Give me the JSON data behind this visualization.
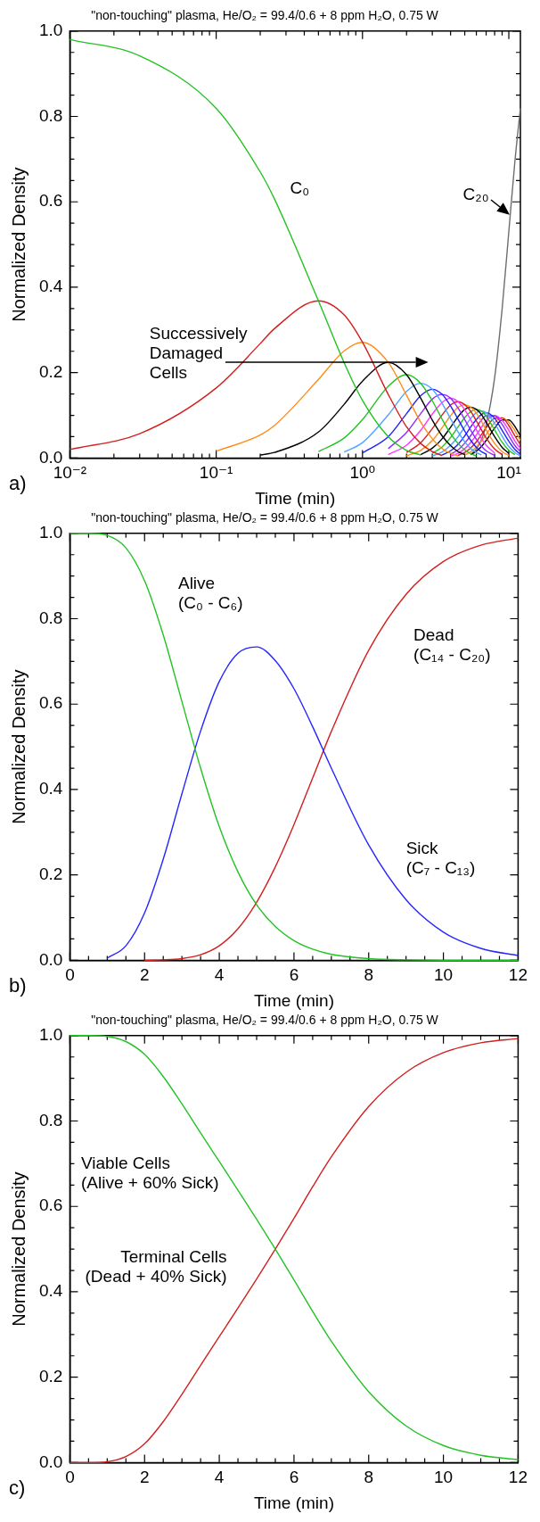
{
  "chart_data": [
    {
      "type": "line",
      "title": "\"non-touching\" plasma, He/O₂ = 99.4/0.6 + 8 ppm H₂O, 0.75 W",
      "xlabel": "Time (min)",
      "ylabel": "Normalized Density",
      "log": "x",
      "marker": "none",
      "xlim": [
        0.01,
        12
      ],
      "xticks": [
        {
          "value": 0.01,
          "label": "10⁻²"
        },
        {
          "value": 0.02,
          "label": null
        },
        {
          "value": 0.03,
          "label": null
        },
        {
          "value": 0.04,
          "label": null
        },
        {
          "value": 0.05,
          "label": null
        },
        {
          "value": 0.06,
          "label": null
        },
        {
          "value": 0.07,
          "label": null
        },
        {
          "value": 0.08,
          "label": null
        },
        {
          "value": 0.09,
          "label": null
        },
        {
          "value": 0.1,
          "label": "10⁻¹"
        },
        {
          "value": 0.2,
          "label": null
        },
        {
          "value": 0.3,
          "label": null
        },
        {
          "value": 0.4,
          "label": null
        },
        {
          "value": 0.5,
          "label": null
        },
        {
          "value": 0.6,
          "label": null
        },
        {
          "value": 0.7,
          "label": null
        },
        {
          "value": 0.8,
          "label": null
        },
        {
          "value": 0.9,
          "label": null
        },
        {
          "value": 1,
          "label": "10⁰"
        },
        {
          "value": 2,
          "label": null
        },
        {
          "value": 3,
          "label": null
        },
        {
          "value": 4,
          "label": null
        },
        {
          "value": 5,
          "label": null
        },
        {
          "value": 6,
          "label": null
        },
        {
          "value": 7,
          "label": null
        },
        {
          "value": 8,
          "label": null
        },
        {
          "value": 9,
          "label": null
        },
        {
          "value": 10,
          "label": "10¹"
        }
      ],
      "ylim": [
        0,
        1
      ],
      "yticks": [
        {
          "value": 0,
          "label": "0.0"
        },
        {
          "value": 0.05,
          "label": null
        },
        {
          "value": 0.1,
          "label": null
        },
        {
          "value": 0.15,
          "label": null
        },
        {
          "value": 0.2,
          "label": "0.2"
        },
        {
          "value": 0.25,
          "label": null
        },
        {
          "value": 0.3,
          "label": null
        },
        {
          "value": 0.35,
          "label": null
        },
        {
          "value": 0.4,
          "label": "0.4"
        },
        {
          "value": 0.45,
          "label": null
        },
        {
          "value": 0.5,
          "label": null
        },
        {
          "value": 0.55,
          "label": null
        },
        {
          "value": 0.6,
          "label": "0.6"
        },
        {
          "value": 0.65,
          "label": null
        },
        {
          "value": 0.7,
          "label": null
        },
        {
          "value": 0.75,
          "label": null
        },
        {
          "value": 0.8,
          "label": "0.8"
        },
        {
          "value": 0.85,
          "label": null
        },
        {
          "value": 0.9,
          "label": null
        },
        {
          "value": 0.95,
          "label": null
        },
        {
          "value": 1,
          "label": "1.0"
        }
      ],
      "x": [
        0.01,
        0.03,
        0.1,
        0.2,
        0.25,
        0.5,
        0.75,
        1,
        1.5,
        2,
        2.5,
        3,
        3.5,
        4,
        4.5,
        5,
        5.5,
        6,
        6.5,
        7,
        8,
        9,
        10,
        11,
        12
      ],
      "series": [
        {
          "name": "C₀",
          "color": "#22c322",
          "values": [
            0.98,
            0.942,
            0.819,
            0.67,
            0.607,
            0.368,
            0.223,
            0.135,
            0.05,
            0.018,
            0.007,
            null,
            null,
            null,
            null,
            null,
            null,
            null,
            null,
            null,
            null,
            null,
            null,
            null,
            null
          ]
        },
        {
          "color": "#d21f1f",
          "values": [
            0.02,
            0.057,
            0.164,
            0.268,
            0.303,
            0.368,
            0.335,
            0.271,
            0.149,
            0.073,
            0.034,
            0.015,
            0.006,
            null,
            null,
            null,
            null,
            null,
            null,
            null,
            null,
            null,
            null,
            null,
            null
          ]
        },
        {
          "color": "#ff8c1a",
          "values": [
            null,
            null,
            0.016,
            0.054,
            0.076,
            0.184,
            0.251,
            0.271,
            0.224,
            0.147,
            0.084,
            0.045,
            0.022,
            0.011,
            0.005,
            null,
            null,
            null,
            null,
            null,
            null,
            null,
            null,
            null,
            null
          ]
        },
        {
          "color": "#000000",
          "values": [
            null,
            null,
            null,
            0.007,
            0.013,
            0.061,
            0.126,
            0.18,
            0.224,
            0.195,
            0.14,
            0.089,
            0.052,
            0.029,
            0.015,
            0.008,
            null,
            null,
            null,
            null,
            null,
            null,
            null,
            null,
            null
          ]
        },
        {
          "color": "#22c322",
          "values": [
            null,
            null,
            null,
            null,
            null,
            0.015,
            0.047,
            0.09,
            0.168,
            0.195,
            0.175,
            0.134,
            0.091,
            0.057,
            0.034,
            0.019,
            0.01,
            0.005,
            null,
            null,
            null,
            null,
            null,
            null,
            null
          ]
        },
        {
          "color": "#4da6ff",
          "values": [
            null,
            null,
            null,
            null,
            null,
            null,
            0.014,
            0.036,
            0.101,
            0.156,
            0.175,
            0.161,
            0.128,
            0.092,
            0.061,
            0.038,
            0.022,
            0.013,
            0.007,
            null,
            null,
            null,
            null,
            null,
            null
          ]
        },
        {
          "color": "#1f1fff",
          "values": [
            null,
            null,
            null,
            null,
            null,
            null,
            null,
            0.012,
            0.05,
            0.104,
            0.146,
            0.161,
            0.149,
            0.122,
            0.091,
            0.063,
            0.041,
            0.025,
            0.015,
            0.009,
            null,
            null,
            null,
            null,
            null
          ]
        },
        {
          "color": "#8f2bff",
          "values": [
            null,
            null,
            null,
            null,
            null,
            null,
            null,
            null,
            0.022,
            0.06,
            0.104,
            0.138,
            0.149,
            0.14,
            0.117,
            0.09,
            0.065,
            0.044,
            0.028,
            0.017,
            0.006,
            null,
            null,
            null,
            null
          ]
        },
        {
          "color": "#ff33ff",
          "values": [
            null,
            null,
            null,
            null,
            null,
            null,
            null,
            null,
            0.008,
            0.03,
            0.065,
            0.103,
            0.13,
            0.14,
            0.132,
            0.113,
            0.089,
            0.066,
            0.046,
            0.03,
            0.012,
            null,
            null,
            null,
            null
          ]
        },
        {
          "color": "#d21f1f",
          "values": [
            null,
            null,
            null,
            null,
            null,
            null,
            null,
            null,
            null,
            0.013,
            0.036,
            0.069,
            0.101,
            0.124,
            0.132,
            0.125,
            0.109,
            0.087,
            0.066,
            0.047,
            0.021,
            0.008,
            null,
            null,
            null
          ]
        },
        {
          "color": "#ff8c1a",
          "values": [
            null,
            null,
            null,
            null,
            null,
            null,
            null,
            null,
            null,
            0.005,
            0.018,
            0.041,
            0.071,
            0.099,
            0.119,
            0.125,
            0.119,
            0.105,
            0.086,
            0.066,
            0.034,
            0.015,
            0.006,
            null,
            null
          ]
        },
        {
          "color": "#000000",
          "values": [
            null,
            null,
            null,
            null,
            null,
            null,
            null,
            null,
            null,
            null,
            0.008,
            0.023,
            0.045,
            0.072,
            0.097,
            0.114,
            0.119,
            0.114,
            0.102,
            0.084,
            0.05,
            0.025,
            0.011,
            null,
            null
          ]
        },
        {
          "color": "#22c322",
          "values": [
            null,
            null,
            null,
            null,
            null,
            null,
            null,
            null,
            null,
            null,
            null,
            0.011,
            0.026,
            0.048,
            0.073,
            0.095,
            0.109,
            0.114,
            0.11,
            0.098,
            0.066,
            0.037,
            0.018,
            0.008,
            null
          ]
        },
        {
          "color": "#4da6ff",
          "values": [
            null,
            null,
            null,
            null,
            null,
            null,
            null,
            null,
            null,
            null,
            null,
            0.005,
            0.014,
            0.03,
            0.05,
            0.073,
            0.093,
            0.106,
            0.11,
            0.106,
            0.081,
            0.051,
            0.027,
            0.013,
            0.005
          ]
        },
        {
          "color": "#1f1fff",
          "values": [
            null,
            null,
            null,
            null,
            null,
            null,
            null,
            null,
            null,
            null,
            null,
            null,
            0.007,
            0.017,
            0.032,
            0.052,
            0.073,
            0.09,
            0.102,
            0.106,
            0.093,
            0.065,
            0.039,
            0.02,
            0.009
          ]
        },
        {
          "color": "#8f2bff",
          "values": [
            null,
            null,
            null,
            null,
            null,
            null,
            null,
            null,
            null,
            null,
            null,
            null,
            null,
            0.009,
            0.019,
            0.035,
            0.053,
            0.072,
            0.089,
            0.099,
            0.099,
            0.079,
            0.052,
            0.029,
            0.015
          ]
        },
        {
          "color": "#ff33ff",
          "values": [
            null,
            null,
            null,
            null,
            null,
            null,
            null,
            null,
            null,
            null,
            null,
            null,
            null,
            0.005,
            0.011,
            0.022,
            0.037,
            0.054,
            0.072,
            0.087,
            0.099,
            0.088,
            0.065,
            0.04,
            0.022
          ]
        },
        {
          "color": "#d21f1f",
          "values": [
            null,
            null,
            null,
            null,
            null,
            null,
            null,
            null,
            null,
            null,
            null,
            null,
            null,
            null,
            0.006,
            0.013,
            0.024,
            0.038,
            0.055,
            0.071,
            0.093,
            0.094,
            0.076,
            0.052,
            0.031
          ]
        },
        {
          "color": "#ff8c1a",
          "values": [
            null,
            null,
            null,
            null,
            null,
            null,
            null,
            null,
            null,
            null,
            null,
            null,
            null,
            null,
            null,
            0.007,
            0.015,
            0.026,
            0.04,
            0.055,
            0.083,
            0.094,
            0.084,
            0.064,
            0.041
          ]
        },
        {
          "color": "#000000",
          "values": [
            null,
            null,
            null,
            null,
            null,
            null,
            null,
            null,
            null,
            null,
            null,
            null,
            null,
            null,
            null,
            null,
            0.008,
            0.016,
            0.027,
            0.041,
            0.07,
            0.089,
            0.089,
            0.074,
            0.052
          ]
        },
        {
          "name": "C₂₀",
          "color": "#6e6e6e",
          "values": [
            null,
            null,
            null,
            null,
            null,
            null,
            null,
            null,
            null,
            null,
            null,
            null,
            null,
            null,
            null,
            null,
            0.009,
            0.021,
            0.043,
            0.077,
            0.188,
            0.349,
            0.53,
            0.694,
            0.82
          ]
        }
      ],
      "annotations": [
        "a)",
        "Successively Damaged Cells"
      ]
    },
    {
      "type": "line",
      "title": "\"non-touching\" plasma, He/O₂ = 99.4/0.6 + 8 ppm H₂O, 0.75 W",
      "xlabel": "Time (min)",
      "ylabel": "Normalized Density",
      "marker": "none",
      "xlim": [
        0,
        12
      ],
      "xticks": [
        0,
        {
          "value": 0.5,
          "label": null
        },
        {
          "value": 1,
          "label": null
        },
        {
          "value": 1.5,
          "label": null
        },
        2,
        {
          "value": 2.5,
          "label": null
        },
        {
          "value": 3,
          "label": null
        },
        {
          "value": 3.5,
          "label": null
        },
        4,
        {
          "value": 4.5,
          "label": null
        },
        {
          "value": 5,
          "label": null
        },
        {
          "value": 5.5,
          "label": null
        },
        6,
        {
          "value": 6.5,
          "label": null
        },
        {
          "value": 7,
          "label": null
        },
        {
          "value": 7.5,
          "label": null
        },
        8,
        {
          "value": 8.5,
          "label": null
        },
        {
          "value": 9,
          "label": null
        },
        {
          "value": 9.5,
          "label": null
        },
        10,
        {
          "value": 10.5,
          "label": null
        },
        {
          "value": 11,
          "label": null
        },
        {
          "value": 11.5,
          "label": null
        },
        12
      ],
      "ylim": [
        0,
        1
      ],
      "yticks": [
        {
          "value": 0,
          "label": "0.0"
        },
        {
          "value": 0.05,
          "label": null
        },
        {
          "value": 0.1,
          "label": null
        },
        {
          "value": 0.15,
          "label": null
        },
        {
          "value": 0.2,
          "label": "0.2"
        },
        {
          "value": 0.25,
          "label": null
        },
        {
          "value": 0.3,
          "label": null
        },
        {
          "value": 0.35,
          "label": null
        },
        {
          "value": 0.4,
          "label": "0.4"
        },
        {
          "value": 0.45,
          "label": null
        },
        {
          "value": 0.5,
          "label": null
        },
        {
          "value": 0.55,
          "label": null
        },
        {
          "value": 0.6,
          "label": "0.6"
        },
        {
          "value": 0.65,
          "label": null
        },
        {
          "value": 0.7,
          "label": null
        },
        {
          "value": 0.75,
          "label": null
        },
        {
          "value": 0.8,
          "label": "0.8"
        },
        {
          "value": 0.85,
          "label": null
        },
        {
          "value": 0.9,
          "label": null
        },
        {
          "value": 0.95,
          "label": null
        },
        {
          "value": 1,
          "label": "1.0"
        }
      ],
      "x": [
        0,
        0.5,
        1,
        1.5,
        2,
        2.5,
        3,
        3.5,
        4,
        4.5,
        5,
        5.5,
        6,
        6.5,
        7,
        8,
        9,
        10,
        11,
        12
      ],
      "series": [
        {
          "name": "Alive (C₀ - C₆)",
          "color": "#22c322",
          "values": [
            1,
            1.0,
            0.995,
            0.966,
            0.889,
            0.762,
            0.606,
            0.45,
            0.313,
            0.207,
            0.13,
            0.079,
            0.046,
            0.026,
            0.014,
            0.004,
            0.001,
            0,
            0,
            0
          ]
        },
        {
          "name": "Sick (C₇ - C₁₃)",
          "color": "#2525ff",
          "values": [
            null,
            null,
            0.005,
            0.034,
            0.111,
            0.237,
            0.39,
            0.537,
            0.653,
            0.719,
            0.734,
            0.702,
            0.636,
            0.547,
            0.45,
            0.27,
            0.142,
            0.066,
            0.028,
            0.011
          ]
        },
        {
          "name": "Dead (C₁₄ - C₂₀)",
          "color": "#d21f1f",
          "values": [
            null,
            null,
            null,
            null,
            0,
            0.001,
            0.004,
            0.013,
            0.034,
            0.074,
            0.136,
            0.219,
            0.318,
            0.427,
            0.536,
            0.726,
            0.857,
            0.934,
            0.972,
            0.989
          ]
        }
      ],
      "annotations": [
        "b)"
      ]
    },
    {
      "type": "line",
      "title": "\"non-touching\" plasma, He/O₂ = 99.4/0.6 + 8 ppm H₂O, 0.75 W",
      "xlabel": "Time (min)",
      "ylabel": "Normalized Density",
      "marker": "none",
      "xlim": [
        0,
        12
      ],
      "xticks": [
        0,
        {
          "value": 0.5,
          "label": null
        },
        {
          "value": 1,
          "label": null
        },
        {
          "value": 1.5,
          "label": null
        },
        2,
        {
          "value": 2.5,
          "label": null
        },
        {
          "value": 3,
          "label": null
        },
        {
          "value": 3.5,
          "label": null
        },
        4,
        {
          "value": 4.5,
          "label": null
        },
        {
          "value": 5,
          "label": null
        },
        {
          "value": 5.5,
          "label": null
        },
        6,
        {
          "value": 6.5,
          "label": null
        },
        {
          "value": 7,
          "label": null
        },
        {
          "value": 7.5,
          "label": null
        },
        8,
        {
          "value": 8.5,
          "label": null
        },
        {
          "value": 9,
          "label": null
        },
        {
          "value": 9.5,
          "label": null
        },
        10,
        {
          "value": 10.5,
          "label": null
        },
        {
          "value": 11,
          "label": null
        },
        {
          "value": 11.5,
          "label": null
        },
        12
      ],
      "ylim": [
        0,
        1
      ],
      "yticks": [
        {
          "value": 0,
          "label": "0.0"
        },
        {
          "value": 0.05,
          "label": null
        },
        {
          "value": 0.1,
          "label": null
        },
        {
          "value": 0.15,
          "label": null
        },
        {
          "value": 0.2,
          "label": "0.2"
        },
        {
          "value": 0.25,
          "label": null
        },
        {
          "value": 0.3,
          "label": null
        },
        {
          "value": 0.35,
          "label": null
        },
        {
          "value": 0.4,
          "label": "0.4"
        },
        {
          "value": 0.45,
          "label": null
        },
        {
          "value": 0.5,
          "label": null
        },
        {
          "value": 0.55,
          "label": null
        },
        {
          "value": 0.6,
          "label": "0.6"
        },
        {
          "value": 0.65,
          "label": null
        },
        {
          "value": 0.7,
          "label": null
        },
        {
          "value": 0.75,
          "label": null
        },
        {
          "value": 0.8,
          "label": "0.8"
        },
        {
          "value": 0.85,
          "label": null
        },
        {
          "value": 0.9,
          "label": null
        },
        {
          "value": 0.95,
          "label": null
        },
        {
          "value": 1,
          "label": "1.0"
        }
      ],
      "x": [
        0,
        0.5,
        1,
        1.5,
        2,
        2.5,
        3,
        3.5,
        4,
        4.5,
        5,
        5.5,
        6,
        6.5,
        7,
        8,
        9,
        10,
        11,
        12
      ],
      "series": [
        {
          "name": "Viable Cells (Alive + 60% Sick)",
          "color": "#22c322",
          "values": [
            1,
            1,
            0.998,
            0.986,
            0.956,
            0.904,
            0.84,
            0.772,
            0.705,
            0.638,
            0.57,
            0.5,
            0.428,
            0.354,
            0.284,
            0.166,
            0.086,
            0.04,
            0.017,
            0.007
          ]
        },
        {
          "name": "Terminal Cells (Dead + 40% Sick)",
          "color": "#d21f1f",
          "values": [
            0,
            0,
            0.002,
            0.014,
            0.044,
            0.096,
            0.16,
            0.228,
            0.295,
            0.362,
            0.43,
            0.5,
            0.572,
            0.646,
            0.716,
            0.834,
            0.914,
            0.96,
            0.983,
            0.993
          ]
        }
      ],
      "annotations": [
        "c)"
      ]
    }
  ]
}
